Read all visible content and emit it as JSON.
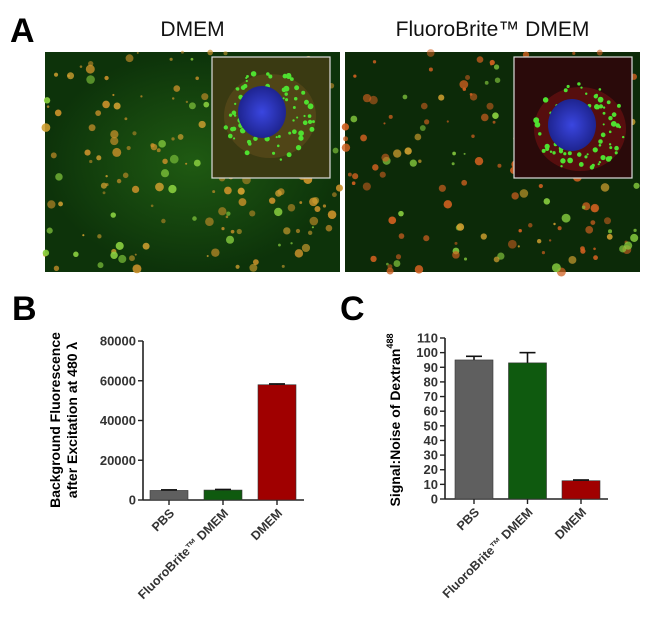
{
  "panel_a": {
    "letter": "A",
    "left_title": "DMEM",
    "right_title": "FluoroBrite™ DMEM"
  },
  "chart_data": [
    {
      "letter": "B",
      "type": "bar",
      "categories": [
        "PBS",
        "FluoroBrite™ DMEM",
        "DMEM"
      ],
      "values": [
        4800,
        5000,
        58000
      ],
      "errors": [
        300,
        300,
        400
      ],
      "colors": [
        "#5f5f5f",
        "#0f5a0f",
        "#a00000"
      ],
      "ylabel_line1": "Background Fluorescence",
      "ylabel_line2": "after Excitation at 480 λ",
      "ylim": [
        0,
        80000
      ],
      "yticks": [
        "0",
        "20000",
        "40000",
        "60000",
        "80000"
      ],
      "grid": false
    },
    {
      "letter": "C",
      "type": "bar",
      "categories": [
        "PBS",
        "FluoroBrite™ DMEM",
        "DMEM"
      ],
      "values": [
        95,
        93,
        12.5
      ],
      "errors": [
        2.5,
        7,
        0.5
      ],
      "colors": [
        "#5f5f5f",
        "#0f5a0f",
        "#a00000"
      ],
      "ylabel": "Signal:Noise of Dextran",
      "ylabel_superscript": "488",
      "ylim": [
        0,
        110
      ],
      "yticks": [
        "0",
        "10",
        "20",
        "30",
        "40",
        "50",
        "60",
        "70",
        "80",
        "90",
        "100",
        "110"
      ],
      "grid": false
    }
  ]
}
